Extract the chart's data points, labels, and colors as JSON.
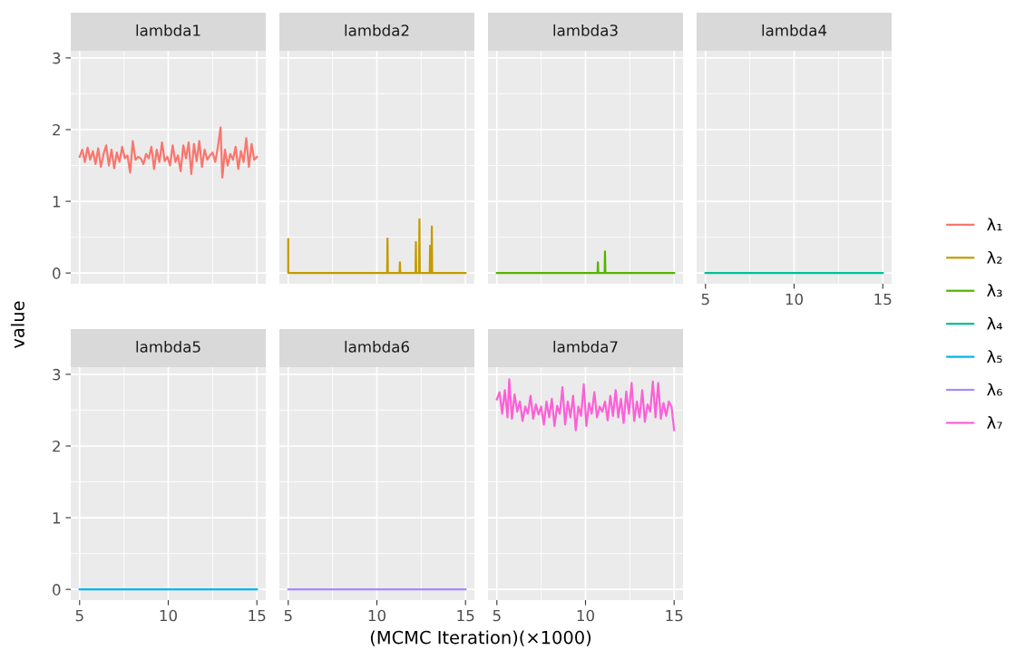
{
  "chart_data": [
    {
      "type": "line",
      "title": "lambda1",
      "ylabel": "value",
      "xlim": [
        4.5,
        15.5
      ],
      "xticks": [
        5,
        10,
        15
      ],
      "ylim": [
        -0.15,
        3.1
      ],
      "yticks": [
        0,
        1,
        2,
        3
      ],
      "grid": true,
      "tick_labels": "y",
      "legend": "right",
      "series": [
        {
          "name": "λ₁",
          "color": "#f8766d",
          "x": [
            5.0,
            5.15,
            5.3,
            5.45,
            5.6,
            5.75,
            5.9,
            6.05,
            6.2,
            6.35,
            6.5,
            6.65,
            6.8,
            6.95,
            7.1,
            7.25,
            7.4,
            7.55,
            7.7,
            7.85,
            8.0,
            8.15,
            8.3,
            8.45,
            8.6,
            8.75,
            8.9,
            9.05,
            9.2,
            9.35,
            9.5,
            9.65,
            9.8,
            9.95,
            10.1,
            10.25,
            10.4,
            10.55,
            10.7,
            10.85,
            11.0,
            11.15,
            11.3,
            11.45,
            11.6,
            11.75,
            11.9,
            12.05,
            12.2,
            12.35,
            12.5,
            12.65,
            12.8,
            12.95,
            13.05,
            13.2,
            13.35,
            13.5,
            13.65,
            13.8,
            13.95,
            14.1,
            14.25,
            14.4,
            14.55,
            14.7,
            14.85,
            15.0
          ],
          "values": [
            1.62,
            1.72,
            1.55,
            1.75,
            1.58,
            1.7,
            1.52,
            1.74,
            1.48,
            1.66,
            1.78,
            1.5,
            1.72,
            1.46,
            1.68,
            1.55,
            1.76,
            1.6,
            1.64,
            1.4,
            1.84,
            1.58,
            1.62,
            1.6,
            1.52,
            1.66,
            1.6,
            1.76,
            1.45,
            1.72,
            1.55,
            1.82,
            1.56,
            1.62,
            1.5,
            1.78,
            1.55,
            1.64,
            1.42,
            1.78,
            1.6,
            1.82,
            1.38,
            1.8,
            1.56,
            1.84,
            1.48,
            1.72,
            1.58,
            1.64,
            1.68,
            1.55,
            1.76,
            2.03,
            1.33,
            1.72,
            1.5,
            1.66,
            1.58,
            1.76,
            1.45,
            1.7,
            1.55,
            1.88,
            1.48,
            1.8,
            1.58,
            1.62
          ]
        }
      ]
    },
    {
      "type": "line",
      "title": "lambda2",
      "xlim": [
        4.5,
        15.5
      ],
      "xticks": [
        5,
        10,
        15
      ],
      "ylim": [
        -0.15,
        3.1
      ],
      "yticks": [
        0,
        1,
        2,
        3
      ],
      "grid": true,
      "tick_labels": false,
      "legend": "right",
      "series": [
        {
          "name": "λ₂",
          "color": "#c49a00",
          "x": [
            5.0,
            5.0,
            5.02,
            10.58,
            10.6,
            10.62,
            11.28,
            11.3,
            11.32,
            12.18,
            12.2,
            12.22,
            12.38,
            12.4,
            12.42,
            12.98,
            13.0,
            13.02,
            13.08,
            13.1,
            13.12,
            15.0
          ],
          "values": [
            0.47,
            0,
            0,
            0,
            0.48,
            0,
            0,
            0.15,
            0,
            0,
            0.43,
            0,
            0,
            0.75,
            0,
            0,
            0.38,
            0,
            0,
            0.65,
            0,
            0
          ]
        }
      ]
    },
    {
      "type": "line",
      "title": "lambda3",
      "xlim": [
        4.5,
        15.5
      ],
      "xticks": [
        5,
        10,
        15
      ],
      "ylim": [
        -0.15,
        3.1
      ],
      "yticks": [
        0,
        1,
        2,
        3
      ],
      "grid": true,
      "tick_labels": false,
      "legend": "right",
      "series": [
        {
          "name": "λ₃",
          "color": "#53b400",
          "x": [
            5.0,
            10.68,
            10.7,
            10.72,
            11.08,
            11.1,
            11.12,
            15.0
          ],
          "values": [
            0,
            0,
            0.15,
            0,
            0,
            0.3,
            0,
            0
          ]
        }
      ]
    },
    {
      "type": "line",
      "title": "lambda4",
      "xlim": [
        4.5,
        15.5
      ],
      "xticks": [
        5,
        10,
        15
      ],
      "ylim": [
        -0.15,
        3.1
      ],
      "yticks": [
        0,
        1,
        2,
        3
      ],
      "grid": true,
      "tick_labels": "x",
      "legend": "right",
      "series": [
        {
          "name": "λ₄",
          "color": "#00c094",
          "x": [
            5.0,
            15.0
          ],
          "values": [
            0,
            0
          ]
        }
      ]
    },
    {
      "type": "line",
      "title": "lambda5",
      "xlim": [
        4.5,
        15.5
      ],
      "xticks": [
        5,
        10,
        15
      ],
      "ylim": [
        -0.15,
        3.1
      ],
      "yticks": [
        0,
        1,
        2,
        3
      ],
      "grid": true,
      "legend": "right",
      "series": [
        {
          "name": "λ₅",
          "color": "#00b6eb",
          "x": [
            5.0,
            15.0
          ],
          "values": [
            0,
            0
          ]
        }
      ]
    },
    {
      "type": "line",
      "title": "lambda6",
      "xlabel": "(MCMC Iteration)(×1000)",
      "xlim": [
        4.5,
        15.5
      ],
      "xticks": [
        5,
        10,
        15
      ],
      "ylim": [
        -0.15,
        3.1
      ],
      "yticks": [
        0,
        1,
        2,
        3
      ],
      "grid": true,
      "tick_labels": "x",
      "legend": "right",
      "series": [
        {
          "name": "λ₆",
          "color": "#a58aff",
          "x": [
            5.0,
            15.0
          ],
          "values": [
            0,
            0
          ]
        }
      ]
    },
    {
      "type": "line",
      "title": "lambda7",
      "xlim": [
        4.5,
        15.5
      ],
      "xticks": [
        5,
        10,
        15
      ],
      "ylim": [
        -0.15,
        3.1
      ],
      "yticks": [
        0,
        1,
        2,
        3
      ],
      "grid": true,
      "tick_labels": "x",
      "legend": "right",
      "series": [
        {
          "name": "λ₇",
          "color": "#fb61d7",
          "x": [
            5.0,
            5.15,
            5.3,
            5.45,
            5.6,
            5.7,
            5.85,
            6.0,
            6.15,
            6.3,
            6.45,
            6.6,
            6.75,
            6.9,
            7.05,
            7.2,
            7.35,
            7.5,
            7.65,
            7.8,
            7.95,
            8.1,
            8.25,
            8.4,
            8.55,
            8.7,
            8.85,
            9.0,
            9.15,
            9.3,
            9.45,
            9.6,
            9.75,
            9.9,
            10.05,
            10.2,
            10.35,
            10.5,
            10.65,
            10.8,
            10.95,
            11.1,
            11.25,
            11.4,
            11.55,
            11.7,
            11.85,
            12.0,
            12.15,
            12.3,
            12.45,
            12.6,
            12.75,
            12.9,
            13.05,
            13.2,
            13.35,
            13.5,
            13.65,
            13.8,
            13.95,
            14.1,
            14.25,
            14.4,
            14.55,
            14.7,
            14.85,
            15.0
          ],
          "values": [
            2.65,
            2.75,
            2.45,
            2.78,
            2.4,
            2.93,
            2.38,
            2.72,
            2.48,
            2.62,
            2.35,
            2.55,
            2.45,
            2.7,
            2.38,
            2.58,
            2.44,
            2.55,
            2.3,
            2.62,
            2.4,
            2.66,
            2.28,
            2.56,
            2.45,
            2.82,
            2.3,
            2.62,
            2.4,
            2.7,
            2.22,
            2.55,
            2.42,
            2.86,
            2.28,
            2.6,
            2.45,
            2.75,
            2.4,
            2.55,
            2.48,
            2.62,
            2.36,
            2.7,
            2.42,
            2.78,
            2.4,
            2.66,
            2.32,
            2.76,
            2.45,
            2.88,
            2.35,
            2.62,
            2.4,
            2.78,
            2.34,
            2.58,
            2.48,
            2.9,
            2.4,
            2.88,
            2.38,
            2.6,
            2.42,
            2.62,
            2.55,
            2.22
          ]
        }
      ]
    }
  ]
}
